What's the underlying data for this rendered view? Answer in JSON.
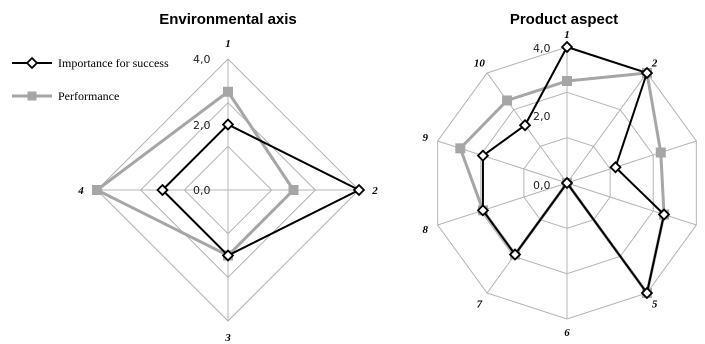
{
  "chart_data": [
    {
      "type": "radar",
      "title": "Environmental axis",
      "categories": [
        "1",
        "2",
        "3",
        "4"
      ],
      "range": [
        0,
        4
      ],
      "ring_labels": [
        "0,0",
        "2,0",
        "4,0"
      ],
      "series": [
        {
          "name": "Importance for success",
          "values": [
            2.0,
            4.0,
            2.0,
            2.0
          ],
          "color": "#000000",
          "marker": "diamond"
        },
        {
          "name": "Performance",
          "values": [
            3.0,
            2.0,
            2.0,
            4.0
          ],
          "color": "#a6a6a6",
          "marker": "square"
        }
      ],
      "legend_position": "top-left"
    },
    {
      "type": "radar",
      "title": "Product aspect",
      "categories": [
        "1",
        "2",
        "3",
        "4",
        "5",
        "6",
        "7",
        "8",
        "9",
        "10"
      ],
      "range": [
        0,
        4
      ],
      "ring_labels": [
        "0,0",
        "2,0",
        "4,0"
      ],
      "series": [
        {
          "name": "Importance for success",
          "values": [
            4.0,
            4.0,
            1.5,
            3.0,
            4.0,
            0.0,
            2.6,
            2.6,
            2.6,
            2.1
          ],
          "color": "#000000",
          "marker": "diamond"
        },
        {
          "name": "Performance",
          "values": [
            3.0,
            4.0,
            2.9,
            3.0,
            4.0,
            0.0,
            2.6,
            2.6,
            3.3,
            3.0
          ],
          "color": "#a6a6a6",
          "marker": "square"
        }
      ]
    }
  ]
}
